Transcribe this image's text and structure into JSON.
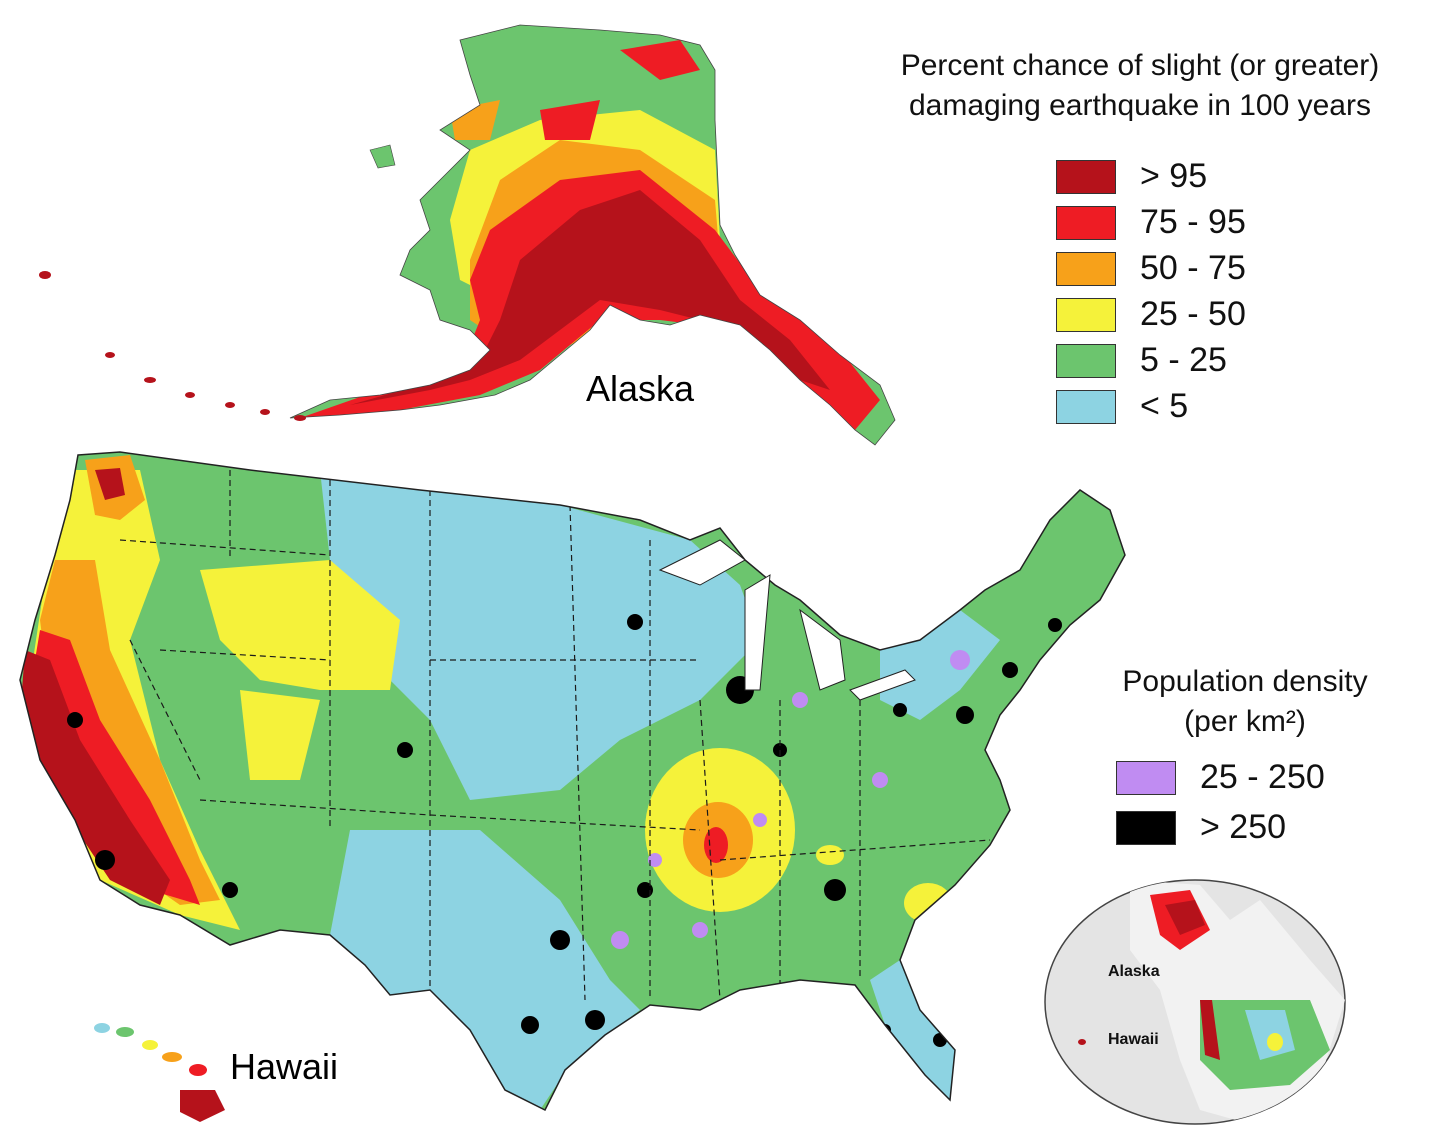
{
  "map": {
    "labels": {
      "alaska": "Alaska",
      "hawaii": "Hawaii"
    }
  },
  "hazard_legend": {
    "title_line1": "Percent chance of slight (or greater)",
    "title_line2": "damaging earthquake in 100 years",
    "items": [
      {
        "label": "> 95",
        "color": "#b5121b"
      },
      {
        "label": "75 - 95",
        "color": "#ee1c24"
      },
      {
        "label": "50 - 75",
        "color": "#f7a11a"
      },
      {
        "label": "25 - 50",
        "color": "#f5f23a"
      },
      {
        "label": "5 - 25",
        "color": "#6cc56e"
      },
      {
        "label": "< 5",
        "color": "#8dd3e2"
      }
    ]
  },
  "population_legend": {
    "title_line1": "Population density",
    "title_line2": "(per km²)",
    "items": [
      {
        "label": "25 - 250",
        "color": "#c08cf2"
      },
      {
        "label": "> 250",
        "color": "#000000"
      }
    ]
  },
  "inset": {
    "alaska_label": "Alaska",
    "hawaii_label": "Hawaii"
  }
}
